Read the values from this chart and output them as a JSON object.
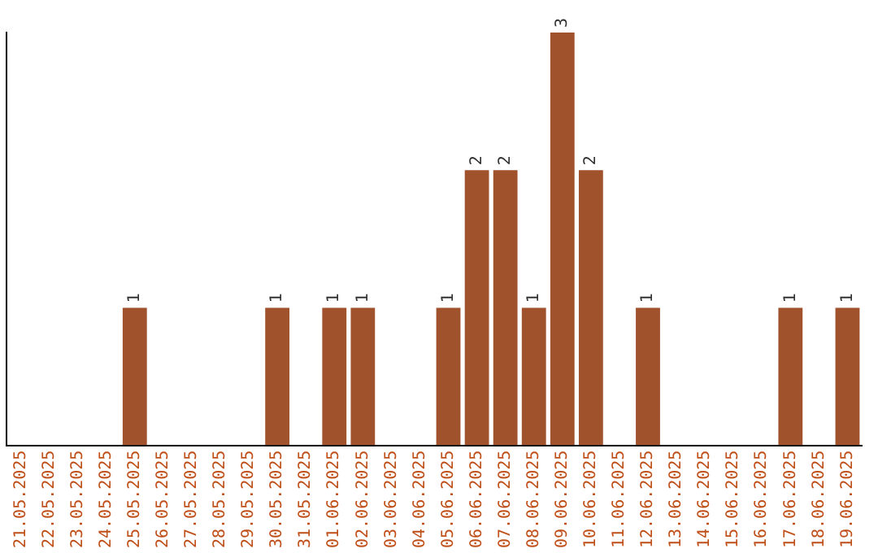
{
  "chart_data": {
    "type": "bar",
    "categories": [
      "21.05.2025",
      "22.05.2025",
      "23.05.2025",
      "24.05.2025",
      "25.05.2025",
      "26.05.2025",
      "27.05.2025",
      "28.05.2025",
      "29.05.2025",
      "30.05.2025",
      "31.05.2025",
      "01.06.2025",
      "02.06.2025",
      "03.06.2025",
      "04.06.2025",
      "05.06.2025",
      "06.06.2025",
      "07.06.2025",
      "08.06.2025",
      "09.06.2025",
      "10.06.2025",
      "11.06.2025",
      "12.06.2025",
      "13.06.2025",
      "14.06.2025",
      "15.06.2025",
      "16.06.2025",
      "17.06.2025",
      "18.06.2025",
      "19.06.2025"
    ],
    "values": [
      0,
      0,
      0,
      0,
      1,
      0,
      0,
      0,
      0,
      1,
      0,
      1,
      1,
      0,
      0,
      1,
      2,
      2,
      1,
      3,
      2,
      0,
      1,
      0,
      0,
      0,
      0,
      1,
      0,
      1
    ],
    "value_labels": [
      null,
      null,
      null,
      null,
      "1",
      null,
      null,
      null,
      null,
      "1",
      null,
      "1",
      "1",
      null,
      null,
      "1",
      "2",
      "2",
      "1",
      "3",
      "2",
      null,
      "1",
      null,
      null,
      null,
      null,
      "1",
      null,
      "1"
    ],
    "color": "#a0522d",
    "grid": false,
    "legend": false,
    "tick_labels": "x"
  }
}
